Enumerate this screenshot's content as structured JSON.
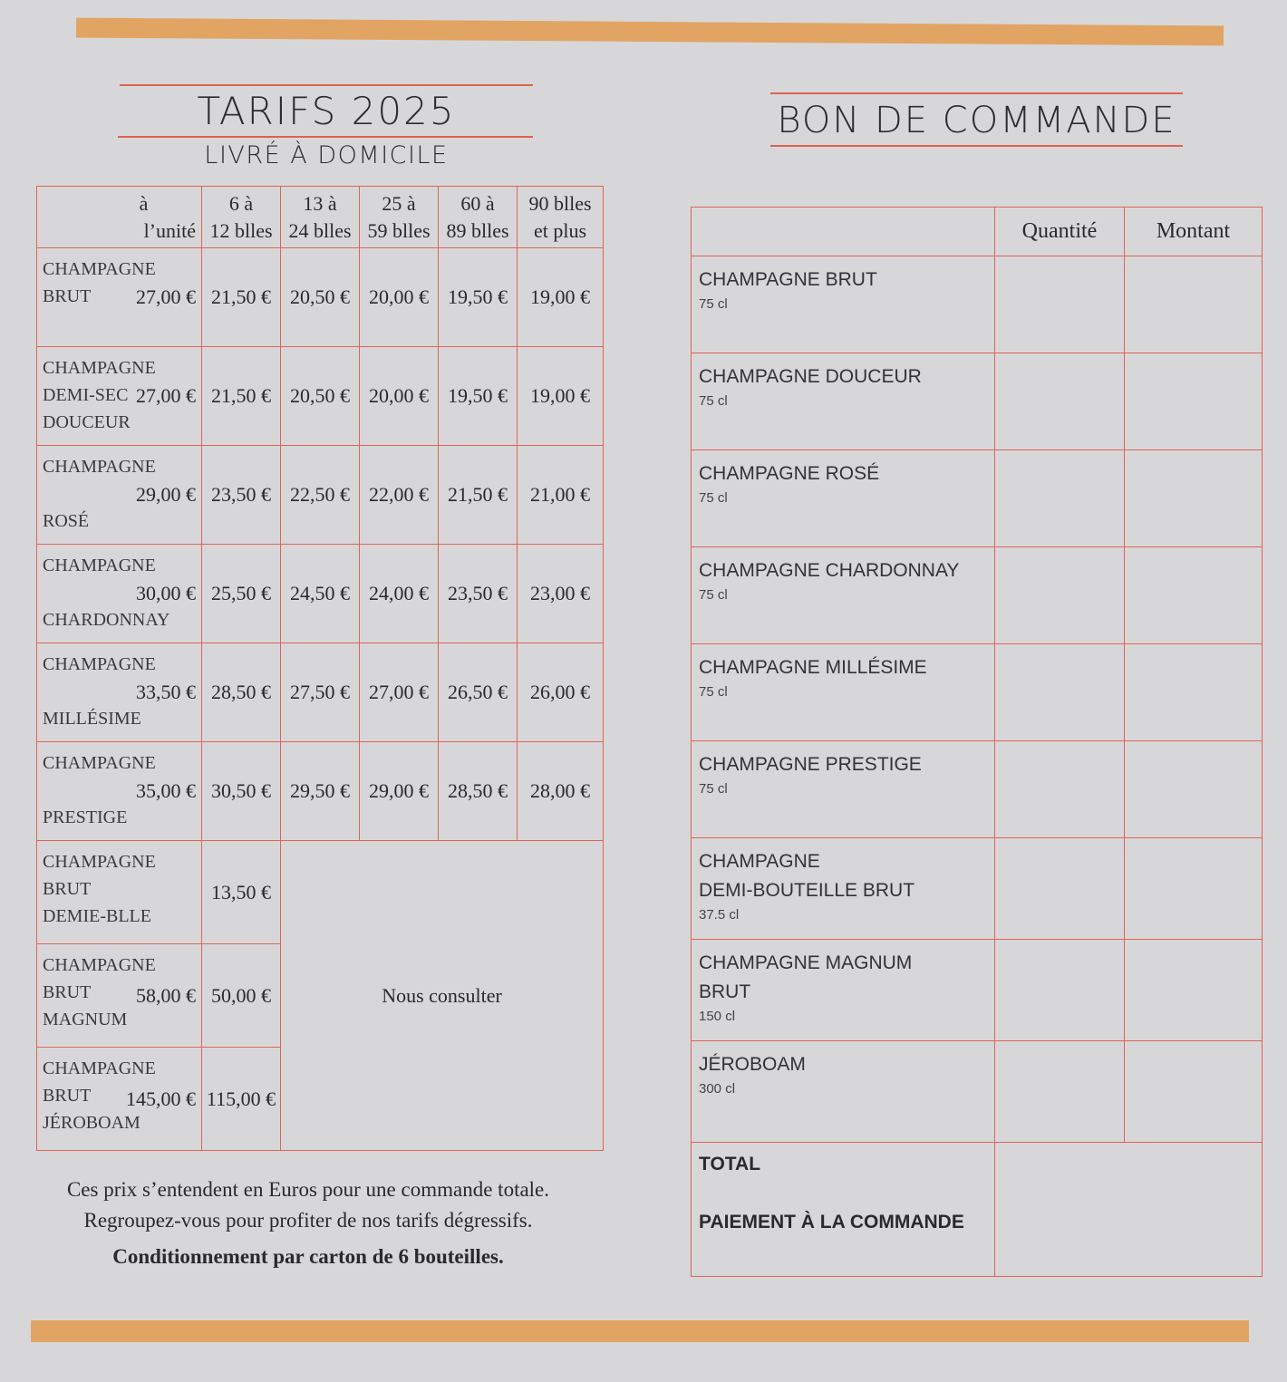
{
  "colors": {
    "accent_bar": "#e2a463",
    "rule": "#e0614f",
    "paper": "#d7d7da"
  },
  "tarifs": {
    "title": "TARIFS 2025",
    "subtitle": "LIVRÉ À DOMICILE",
    "columns": [
      [
        "à",
        "l’unité"
      ],
      [
        "6 à",
        "12 blles"
      ],
      [
        "13 à",
        "24 blles"
      ],
      [
        "25 à",
        "59 blles"
      ],
      [
        "60 à",
        "89 blles"
      ],
      [
        "90 blles",
        "et plus"
      ]
    ],
    "rows": [
      {
        "name": [
          "CHAMPAGNE",
          "BRUT"
        ],
        "unit": "27,00 €",
        "prices": [
          "21,50 €",
          "20,50 €",
          "20,00 €",
          "19,50 €",
          "19,00 €"
        ]
      },
      {
        "name": [
          "CHAMPAGNE",
          "DEMI-SEC",
          "DOUCEUR"
        ],
        "unit": "27,00 €",
        "prices": [
          "21,50 €",
          "20,50 €",
          "20,00 €",
          "19,50 €",
          "19,00 €"
        ]
      },
      {
        "name": [
          "CHAMPAGNE",
          "",
          "ROSÉ"
        ],
        "unit": "29,00 €",
        "prices": [
          "23,50 €",
          "22,50 €",
          "22,00 €",
          "21,50 €",
          "21,00 €"
        ]
      },
      {
        "name": [
          "CHAMPAGNE",
          "",
          "CHARDONNAY"
        ],
        "unit": "30,00 €",
        "prices": [
          "25,50 €",
          "24,50 €",
          "24,00 €",
          "23,50 €",
          "23,00 €"
        ]
      },
      {
        "name": [
          "CHAMPAGNE",
          "",
          "MILLÉSIME"
        ],
        "unit": "33,50 €",
        "prices": [
          "28,50 €",
          "27,50 €",
          "27,00 €",
          "26,50 €",
          "26,00 €"
        ]
      },
      {
        "name": [
          "CHAMPAGNE",
          "",
          "PRESTIGE"
        ],
        "unit": "35,00 €",
        "prices": [
          "30,50 €",
          "29,50 €",
          "29,00 €",
          "28,50 €",
          "28,00 €"
        ]
      },
      {
        "name": [
          "CHAMPAGNE",
          "BRUT",
          "DEMIE-BLLE"
        ],
        "unit": "",
        "prices": [
          "13,50 €"
        ]
      },
      {
        "name": [
          "CHAMPAGNE",
          "BRUT",
          "MAGNUM"
        ],
        "unit": "58,00 €",
        "prices": [
          "50,00 €"
        ]
      },
      {
        "name": [
          "CHAMPAGNE",
          "BRUT",
          "JÉROBOAM"
        ],
        "unit": "145,00 €",
        "prices": [
          "115,00 €"
        ]
      }
    ],
    "consult": "Nous consulter",
    "notes": [
      "Ces prix s’entendent en Euros pour une commande totale.",
      "Regroupez-vous pour profiter de nos tarifs dégressifs.",
      "Conditionnement par carton de 6 bouteilles."
    ]
  },
  "bon": {
    "title": "BON DE COMMANDE",
    "headers": [
      "",
      "Quantité",
      "Montant"
    ],
    "rows": [
      {
        "name": [
          "CHAMPAGNE BRUT"
        ],
        "volume": "75 cl"
      },
      {
        "name": [
          "CHAMPAGNE DOUCEUR"
        ],
        "volume": "75 cl"
      },
      {
        "name": [
          "CHAMPAGNE ROSÉ"
        ],
        "volume": "75 cl"
      },
      {
        "name": [
          "CHAMPAGNE CHARDONNAY"
        ],
        "volume": "75 cl"
      },
      {
        "name": [
          "CHAMPAGNE MILLÉSIME"
        ],
        "volume": "75 cl"
      },
      {
        "name": [
          "CHAMPAGNE PRESTIGE"
        ],
        "volume": "75 cl"
      },
      {
        "name": [
          "CHAMPAGNE",
          "DEMI-BOUTEILLE BRUT"
        ],
        "volume": "37.5 cl"
      },
      {
        "name": [
          "CHAMPAGNE MAGNUM",
          "BRUT"
        ],
        "volume": "150 cl"
      },
      {
        "name": [
          "JÉROBOAM"
        ],
        "volume": "300 cl"
      }
    ],
    "total_label": "TOTAL",
    "payment_label": "PAIEMENT À LA COMMANDE"
  }
}
